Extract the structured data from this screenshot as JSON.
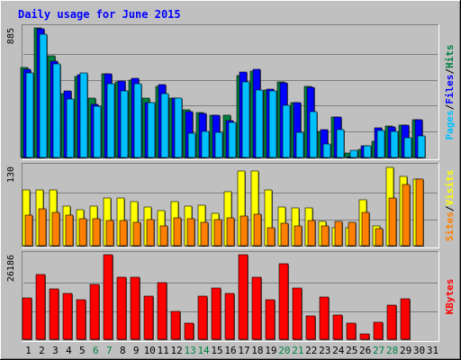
{
  "chart_data": {
    "type": "bar",
    "title": "Daily usage for June 2015",
    "categories": [
      "1",
      "2",
      "3",
      "4",
      "5",
      "6",
      "7",
      "8",
      "9",
      "10",
      "11",
      "12",
      "13",
      "14",
      "15",
      "16",
      "17",
      "18",
      "19",
      "20",
      "21",
      "22",
      "23",
      "24",
      "25",
      "26",
      "27",
      "28",
      "29",
      "30",
      "31"
    ],
    "weekend_days": [
      "6",
      "7",
      "13",
      "14",
      "20",
      "21",
      "27",
      "28"
    ],
    "panels": [
      {
        "id": "top",
        "ymax_label": "885",
        "ymax": 885,
        "series": [
          {
            "name": "Hits",
            "color": "#008040",
            "values": [
              615,
              885,
              695,
              439,
              555,
              406,
              569,
              518,
              529,
              406,
              486,
              406,
              324,
              307,
              286,
              287,
              558,
              589,
              463,
              519,
              372,
              485,
              180,
              278,
              28,
              56,
              112,
              213,
              224,
              256,
              null
            ]
          },
          {
            "name": "Files",
            "color": "#0000ff",
            "values": [
              600,
              880,
              659,
              454,
              565,
              360,
              569,
              521,
              540,
              377,
              497,
              405,
              315,
              304,
              287,
              255,
              584,
              600,
              465,
              511,
              374,
              479,
              190,
              278,
              9,
              80,
              201,
              208,
              223,
              258,
              null
            ]
          },
          {
            "name": "Pages",
            "color": "#00c0ff",
            "values": [
              579,
              842,
              640,
              397,
              576,
              348,
              507,
              455,
              501,
              377,
              434,
              405,
              168,
              180,
              175,
              238,
              514,
              461,
              453,
              357,
              174,
              312,
              93,
              191,
              48,
              78,
              185,
              178,
              136,
              149,
              null
            ]
          }
        ],
        "label_parts": [
          "Pages",
          "/",
          "Files",
          "/",
          "Hits"
        ]
      },
      {
        "id": "middle",
        "ymax_label": "130",
        "ymax": 130,
        "series": [
          {
            "name": "Visits",
            "color": "#ffff00",
            "values": [
              92,
              92,
              92,
              65,
              59,
              65,
              78,
              78,
              72,
              63,
              57,
              72,
              65,
              67,
              53,
              88,
              123,
              123,
              92,
              63,
              62,
              62,
              40,
              29,
              29,
              76,
              33,
              128,
              114,
              110,
              null
            ]
          },
          {
            "name": "Sites",
            "color": "#ff8000",
            "values": [
              50,
              60,
              55,
              50,
              45,
              45,
              42,
              41,
              39,
              43,
              33,
              46,
              44,
              38,
              43,
              46,
              49,
              51,
              29,
              37,
              33,
              41,
              33,
              40,
              38,
              54,
              28,
              79,
              101,
              110,
              null
            ]
          }
        ],
        "label_parts": [
          "Sites",
          "/",
          "Visits"
        ]
      },
      {
        "id": "bottom",
        "ymax_label": "26186",
        "ymax": 26186,
        "series": [
          {
            "name": "KBytes",
            "color": "#ff0000",
            "values": [
              12872,
              20133,
              15570,
              14236,
              12281,
              17011,
              26186,
              19320,
              19320,
              13290,
              17423,
              8680,
              4950,
              13330,
              15980,
              14330,
              26186,
              19130,
              12330,
              23330,
              15860,
              7310,
              13150,
              7630,
              4950,
              1680,
              5260,
              10660,
              12460,
              null,
              null
            ]
          }
        ],
        "label_parts": [
          "KBytes"
        ]
      }
    ]
  },
  "colors": {
    "frame_bg": "#c0c0c0",
    "plot_bg": "#c0c0c0",
    "grid": "#808080",
    "title_color": "#0000ff",
    "day_color": "#000000",
    "weekend_color": "#008040",
    "hits_label": "#008040",
    "files_label": "#0000ff",
    "pages_label": "#00c0ff",
    "sites_label": "#ff8000",
    "visits_label": "#ffff00",
    "kbytes_label": "#ff0000",
    "sep_label": "#000000"
  }
}
